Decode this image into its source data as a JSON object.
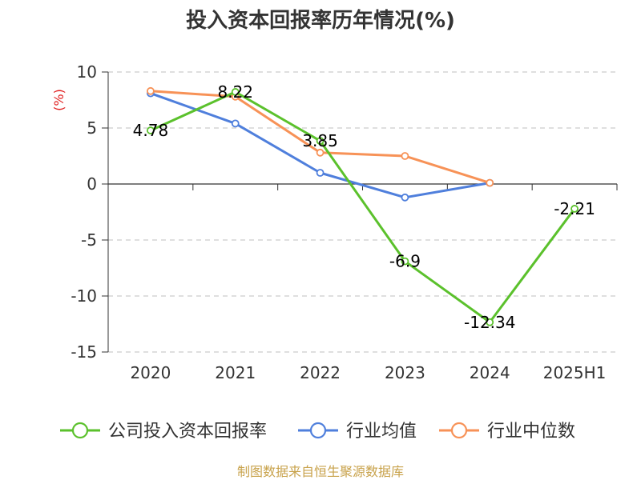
{
  "chart_data": {
    "type": "line",
    "title": "投入资本回报率历年情况(%)",
    "ylabel": "(%)",
    "xlabel": "",
    "categories": [
      "2020",
      "2021",
      "2022",
      "2023",
      "2024",
      "2025H1"
    ],
    "ylim": [
      -15,
      10
    ],
    "yticks": [
      10,
      5,
      0,
      -5,
      -10,
      -15
    ],
    "grid": true,
    "legend_position": "bottom",
    "series": [
      {
        "name": "公司投入资本回报率",
        "color": "#5bc12c",
        "values": [
          4.78,
          8.22,
          3.85,
          -6.9,
          -12.34,
          -2.21
        ],
        "labels": [
          "4.78",
          "8.22",
          "3.85",
          "-6.9",
          "-12.34",
          "-2.21"
        ]
      },
      {
        "name": "行业均值",
        "color": "#4f7fdc",
        "values": [
          8.1,
          5.4,
          1.0,
          -1.2,
          0.1,
          null
        ]
      },
      {
        "name": "行业中位数",
        "color": "#f79257",
        "values": [
          8.3,
          7.8,
          2.8,
          2.5,
          0.1,
          null
        ]
      }
    ],
    "source": "制图数据来自恒生聚源数据库"
  }
}
